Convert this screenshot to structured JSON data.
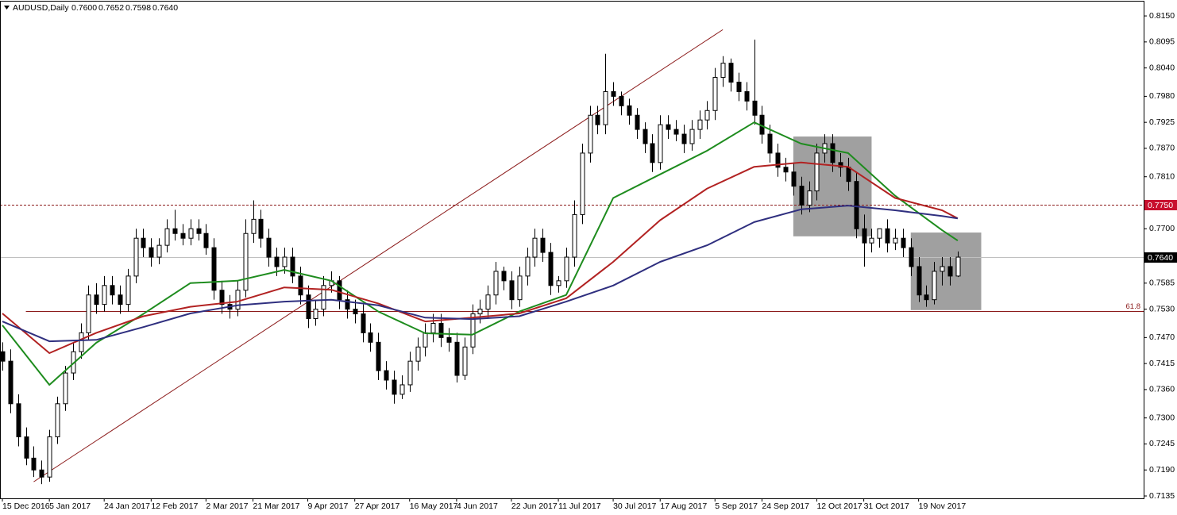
{
  "header": {
    "symbol": "AUDUSD,Daily",
    "quote": [
      "0.7600",
      "0.7652",
      "0.7598",
      "0.7640"
    ]
  },
  "chart_data": {
    "type": "candlestick",
    "categories": [
      "15 Dec 2016",
      null,
      null,
      null,
      null,
      null,
      "5 Jan 2017",
      null,
      null,
      null,
      null,
      null,
      null,
      "24 Jan 2017",
      null,
      null,
      null,
      null,
      null,
      "12 Feb 2017",
      null,
      null,
      null,
      null,
      null,
      null,
      "2 Mar 2017",
      null,
      null,
      null,
      null,
      null,
      "21 Mar 2017",
      null,
      null,
      null,
      null,
      null,
      null,
      "9 Apr 2017",
      null,
      null,
      null,
      null,
      null,
      "27 Apr 2017",
      null,
      null,
      null,
      null,
      null,
      null,
      "16 May 2017",
      null,
      null,
      null,
      null,
      null,
      "4 Jun 2017",
      null,
      null,
      null,
      null,
      null,
      null,
      "22 Jun 2017",
      null,
      null,
      null,
      null,
      null,
      "11 Jul 2017",
      null,
      null,
      null,
      null,
      null,
      null,
      "30 Jul 2017",
      null,
      null,
      null,
      null,
      null,
      "17 Aug 2017",
      null,
      null,
      null,
      null,
      null,
      null,
      "5 Sep 2017",
      null,
      null,
      null,
      null,
      null,
      "24 Sep 2017",
      null,
      null,
      null,
      null,
      null,
      null,
      "12 Oct 2017",
      null,
      null,
      null,
      null,
      null,
      "31 Oct 2017",
      null,
      null,
      null,
      null,
      null,
      null,
      "19 Nov 2017",
      null,
      null,
      null,
      null,
      null
    ],
    "open": [
      0.744,
      0.742,
      0.733,
      0.726,
      0.7215,
      0.719,
      0.7175,
      0.726,
      0.733,
      0.7395,
      0.744,
      0.748,
      0.756,
      0.754,
      0.758,
      0.756,
      0.754,
      0.76,
      0.768,
      0.766,
      0.764,
      0.7665,
      0.77,
      0.769,
      0.768,
      0.77,
      0.769,
      0.766,
      0.757,
      0.754,
      0.753,
      0.757,
      0.769,
      0.772,
      0.768,
      0.764,
      0.762,
      0.764,
      0.76,
      0.756,
      0.751,
      0.753,
      0.758,
      0.759,
      0.755,
      0.753,
      0.752,
      0.748,
      0.746,
      0.74,
      0.738,
      0.735,
      0.737,
      0.742,
      0.745,
      0.748,
      0.75,
      0.747,
      0.746,
      0.739,
      0.745,
      0.752,
      0.753,
      0.756,
      0.761,
      0.759,
      0.755,
      0.76,
      0.764,
      0.768,
      0.765,
      0.758,
      0.759,
      0.764,
      0.773,
      0.786,
      0.794,
      0.792,
      0.799,
      0.798,
      0.796,
      0.794,
      0.791,
      0.788,
      0.784,
      0.792,
      0.791,
      0.79,
      0.788,
      0.791,
      0.793,
      0.795,
      0.802,
      0.805,
      0.801,
      0.799,
      0.797,
      0.794,
      0.79,
      0.786,
      0.783,
      0.782,
      0.779,
      0.775,
      0.778,
      0.786,
      0.788,
      0.784,
      0.783,
      0.78,
      0.77,
      0.767,
      0.768,
      0.77,
      0.767,
      0.768,
      0.766,
      0.762,
      0.756,
      0.755,
      0.761,
      0.762,
      0.76
    ],
    "high": [
      0.746,
      0.7445,
      0.735,
      0.728,
      0.724,
      0.721,
      0.7275,
      0.7345,
      0.741,
      0.746,
      0.75,
      0.758,
      0.7585,
      0.76,
      0.76,
      0.758,
      0.7615,
      0.77,
      0.77,
      0.768,
      0.768,
      0.772,
      0.774,
      0.771,
      0.772,
      0.772,
      0.771,
      0.768,
      0.759,
      0.756,
      0.759,
      0.772,
      0.776,
      0.774,
      0.77,
      0.766,
      0.766,
      0.766,
      0.762,
      0.758,
      0.755,
      0.76,
      0.761,
      0.76,
      0.757,
      0.755,
      0.754,
      0.75,
      0.748,
      0.742,
      0.74,
      0.739,
      0.744,
      0.747,
      0.75,
      0.752,
      0.752,
      0.749,
      0.748,
      0.747,
      0.754,
      0.755,
      0.758,
      0.763,
      0.762,
      0.761,
      0.762,
      0.766,
      0.77,
      0.77,
      0.767,
      0.76,
      0.766,
      0.776,
      0.788,
      0.796,
      0.796,
      0.807,
      0.801,
      0.799,
      0.7975,
      0.7955,
      0.7925,
      0.79,
      0.794,
      0.794,
      0.793,
      0.792,
      0.793,
      0.795,
      0.797,
      0.804,
      0.8065,
      0.806,
      0.803,
      0.801,
      0.81,
      0.796,
      0.792,
      0.788,
      0.785,
      0.784,
      0.781,
      0.78,
      0.788,
      0.79,
      0.79,
      0.786,
      0.785,
      0.782,
      0.773,
      0.77,
      0.77,
      0.772,
      0.77,
      0.77,
      0.768,
      0.764,
      0.758,
      0.763,
      0.764,
      0.764,
      0.7652
    ],
    "low": [
      0.74,
      0.731,
      0.724,
      0.72,
      0.7175,
      0.716,
      0.7165,
      0.7245,
      0.7315,
      0.738,
      0.7425,
      0.7465,
      0.752,
      0.7525,
      0.754,
      0.752,
      0.7525,
      0.7585,
      0.764,
      0.762,
      0.7625,
      0.765,
      0.7675,
      0.7665,
      0.7665,
      0.7675,
      0.7645,
      0.755,
      0.752,
      0.751,
      0.7515,
      0.7555,
      0.767,
      0.766,
      0.762,
      0.76,
      0.7605,
      0.7585,
      0.754,
      0.749,
      0.7495,
      0.7515,
      0.7565,
      0.753,
      0.751,
      0.75,
      0.746,
      0.744,
      0.738,
      0.736,
      0.733,
      0.734,
      0.7355,
      0.74,
      0.743,
      0.746,
      0.745,
      0.744,
      0.7375,
      0.738,
      0.7435,
      0.75,
      0.751,
      0.754,
      0.757,
      0.753,
      0.7535,
      0.758,
      0.762,
      0.763,
      0.756,
      0.7565,
      0.7575,
      0.762,
      0.771,
      0.784,
      0.79,
      0.79,
      0.796,
      0.794,
      0.792,
      0.789,
      0.786,
      0.782,
      0.7825,
      0.789,
      0.7885,
      0.786,
      0.7865,
      0.789,
      0.791,
      0.793,
      0.8,
      0.799,
      0.797,
      0.795,
      0.792,
      0.788,
      0.784,
      0.781,
      0.78,
      0.777,
      0.773,
      0.7735,
      0.776,
      0.784,
      0.782,
      0.781,
      0.778,
      0.768,
      0.762,
      0.765,
      0.766,
      0.765,
      0.7655,
      0.764,
      0.76,
      0.7545,
      0.7535,
      0.754,
      0.758,
      0.758,
      0.7598
    ],
    "close": [
      0.742,
      0.733,
      0.726,
      0.7215,
      0.719,
      0.7175,
      0.726,
      0.733,
      0.7395,
      0.744,
      0.748,
      0.756,
      0.754,
      0.758,
      0.756,
      0.754,
      0.76,
      0.768,
      0.766,
      0.764,
      0.7665,
      0.77,
      0.769,
      0.768,
      0.77,
      0.769,
      0.766,
      0.757,
      0.754,
      0.753,
      0.757,
      0.769,
      0.772,
      0.768,
      0.764,
      0.762,
      0.764,
      0.76,
      0.756,
      0.751,
      0.753,
      0.758,
      0.759,
      0.755,
      0.753,
      0.752,
      0.748,
      0.746,
      0.74,
      0.738,
      0.735,
      0.737,
      0.742,
      0.745,
      0.748,
      0.75,
      0.747,
      0.746,
      0.739,
      0.745,
      0.752,
      0.753,
      0.756,
      0.761,
      0.759,
      0.755,
      0.76,
      0.764,
      0.768,
      0.765,
      0.758,
      0.759,
      0.764,
      0.773,
      0.786,
      0.794,
      0.792,
      0.799,
      0.798,
      0.796,
      0.794,
      0.791,
      0.788,
      0.784,
      0.792,
      0.791,
      0.79,
      0.788,
      0.791,
      0.793,
      0.795,
      0.802,
      0.805,
      0.801,
      0.799,
      0.797,
      0.794,
      0.79,
      0.786,
      0.783,
      0.782,
      0.779,
      0.775,
      0.778,
      0.786,
      0.788,
      0.784,
      0.783,
      0.78,
      0.77,
      0.767,
      0.768,
      0.77,
      0.767,
      0.768,
      0.766,
      0.762,
      0.756,
      0.755,
      0.761,
      0.762,
      0.76,
      0.764
    ],
    "bull_color": "#ffffff",
    "bear_color": "#000000",
    "lines": [
      {
        "color": "#1e8c1e",
        "x": [
          0,
          6,
          12,
          18,
          24,
          30,
          36,
          42,
          48,
          54,
          60,
          66,
          72,
          78,
          84,
          90,
          96,
          102,
          108,
          114,
          120,
          122
        ],
        "values": [
          0.7496,
          0.737,
          0.7459,
          0.752,
          0.7585,
          0.759,
          0.7613,
          0.759,
          0.7525,
          0.7479,
          0.7476,
          0.7525,
          0.756,
          0.7765,
          0.7815,
          0.7865,
          0.7925,
          0.788,
          0.786,
          0.777,
          0.7697,
          0.7675
        ]
      },
      {
        "color": "#b22222",
        "x": [
          0,
          6,
          12,
          18,
          24,
          30,
          36,
          42,
          48,
          54,
          60,
          66,
          72,
          78,
          84,
          90,
          96,
          102,
          108,
          114,
          120,
          122
        ],
        "values": [
          0.7521,
          0.7437,
          0.748,
          0.7515,
          0.7535,
          0.7546,
          0.7576,
          0.7571,
          0.7542,
          0.7504,
          0.7512,
          0.7521,
          0.7553,
          0.763,
          0.7718,
          0.7785,
          0.7831,
          0.784,
          0.7831,
          0.7765,
          0.7739,
          0.7722
        ]
      },
      {
        "color": "#2f2f7f",
        "x": [
          0,
          6,
          12,
          18,
          24,
          30,
          36,
          42,
          48,
          54,
          60,
          66,
          72,
          78,
          84,
          90,
          96,
          102,
          108,
          114,
          120,
          122
        ],
        "values": [
          0.7504,
          0.7462,
          0.7465,
          0.7492,
          0.7521,
          0.7538,
          0.7546,
          0.755,
          0.7538,
          0.7512,
          0.7509,
          0.7515,
          0.7546,
          0.758,
          0.763,
          0.7665,
          0.7714,
          0.7741,
          0.7749,
          0.7739,
          0.7727,
          0.7722
        ]
      }
    ],
    "trendline": {
      "color": "#8b1a1a",
      "x": [
        4,
        92
      ],
      "values": [
        0.7165,
        0.8121
      ]
    },
    "boxes": [
      {
        "color": "#a0a0a0",
        "x": [
          101,
          111
        ],
        "values": [
          0.7895,
          0.7684
        ]
      },
      {
        "color": "#a0a0a0",
        "x": [
          116,
          125
        ],
        "values": [
          0.7692,
          0.7528
        ]
      }
    ],
    "levels": [
      {
        "value": 0.775,
        "label": "0.7750",
        "line_color": "#8b1a1a",
        "tag_color": "#c8102e",
        "dashed": true
      },
      {
        "value": 0.764,
        "label": "0.7640",
        "line_color": "#c0c0c0",
        "tag_color": "#000000",
        "dashed": false
      }
    ],
    "fib": {
      "value": 0.7526,
      "label": "61.8",
      "color": "#8b1a1a",
      "start": 3
    },
    "ylim": [
      0.713,
      0.8182
    ],
    "yticks": [
      {
        "value": 0.815,
        "label": "0.8150"
      },
      {
        "value": 0.8095,
        "label": "0.8095"
      },
      {
        "value": 0.804,
        "label": "0.8040"
      },
      {
        "value": 0.798,
        "label": "0.7980"
      },
      {
        "value": 0.7925,
        "label": "0.7925"
      },
      {
        "value": 0.787,
        "label": "0.7870"
      },
      {
        "value": 0.781,
        "label": "0.7810"
      },
      {
        "value": 0.77,
        "label": "0.7700"
      },
      {
        "value": 0.7585,
        "label": "0.7585"
      },
      {
        "value": 0.753,
        "label": "0.7530"
      },
      {
        "value": 0.747,
        "label": "0.7470"
      },
      {
        "value": 0.7415,
        "label": "0.7415"
      },
      {
        "value": 0.736,
        "label": "0.7360"
      },
      {
        "value": 0.73,
        "label": "0.7300"
      },
      {
        "value": 0.7245,
        "label": "0.7245"
      },
      {
        "value": 0.719,
        "label": "0.7190"
      },
      {
        "value": 0.7135,
        "label": "0.7135"
      }
    ],
    "grid": false
  }
}
